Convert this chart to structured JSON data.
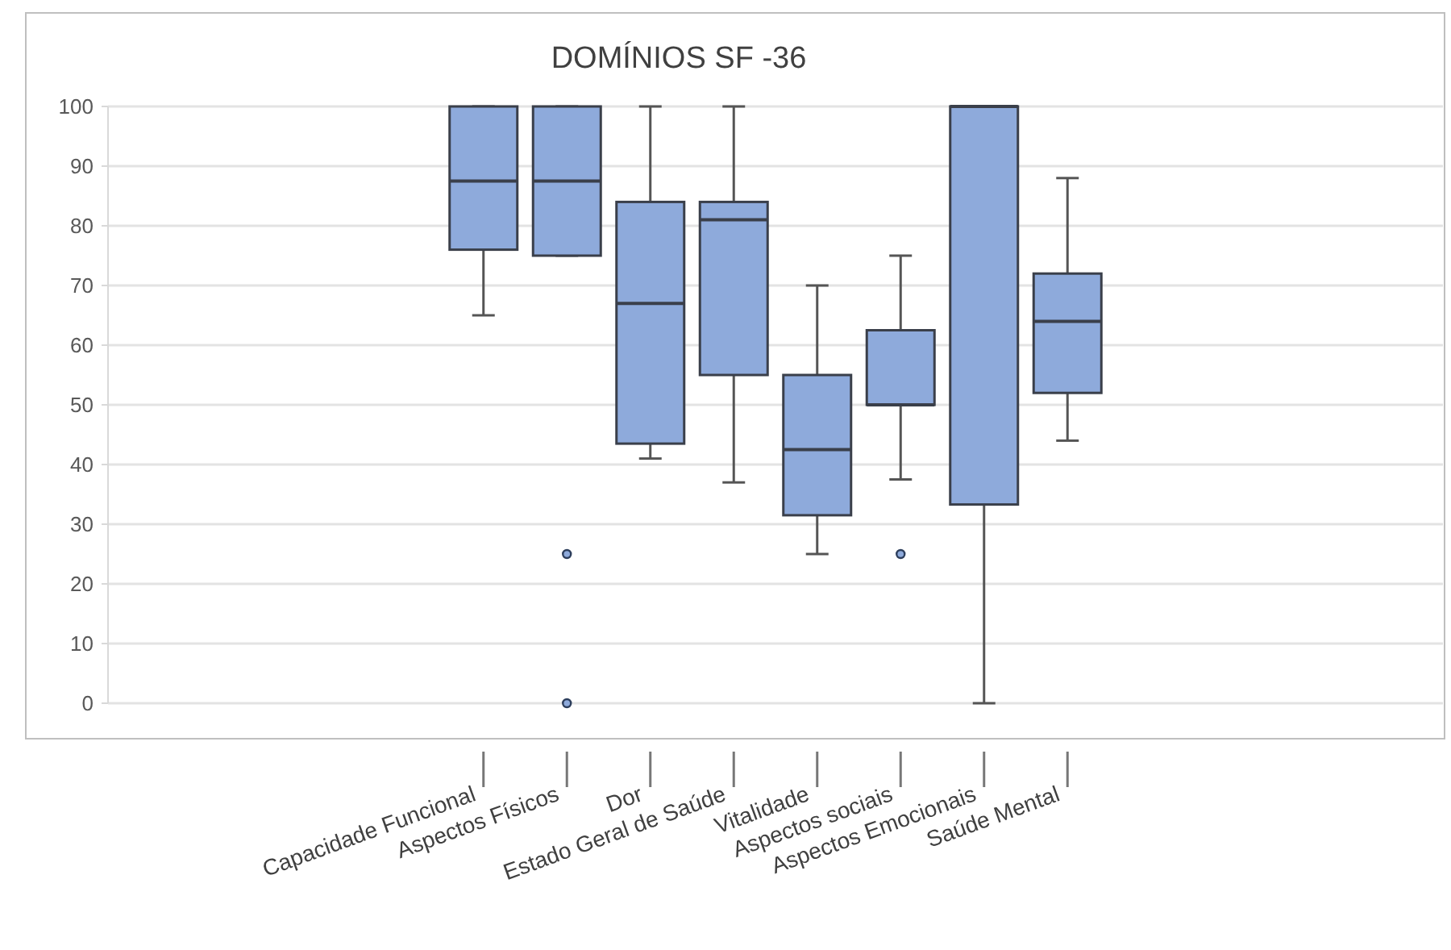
{
  "chart_data": {
    "type": "box",
    "title": "DOMÍNIOS SF -36",
    "categories": [
      null,
      null,
      null,
      null,
      "Capacidade Funcional",
      "Aspectos Físicos",
      "Dor",
      "Estado Geral de Saúde",
      "Vitalidade",
      "Aspectos sociais",
      "Aspectos Emocionais",
      "Saúde Mental",
      null,
      null,
      null,
      null
    ],
    "boxes": [
      null,
      null,
      null,
      null,
      {
        "low": 65,
        "q1": 76,
        "median": 87.5,
        "q3": 100,
        "high": 100
      },
      {
        "low": 75,
        "q1": 75,
        "median": 87.5,
        "q3": 100,
        "high": 100,
        "outliers": [
          25,
          0
        ]
      },
      {
        "low": 41,
        "q1": 43.5,
        "median": 67,
        "q3": 84,
        "high": 100
      },
      {
        "low": 37,
        "q1": 55,
        "median": 81,
        "q3": 84,
        "high": 100
      },
      {
        "low": 25,
        "q1": 31.5,
        "median": 42.5,
        "q3": 55,
        "high": 70
      },
      {
        "low": 37.5,
        "q1": 50,
        "median": 50,
        "q3": 62.5,
        "high": 75,
        "outliers": [
          25
        ]
      },
      {
        "low": 0,
        "q1": 33.3,
        "median": 100,
        "q3": 100,
        "high": 100
      },
      {
        "low": 44,
        "q1": 52,
        "median": 64,
        "q3": 72,
        "high": 88
      },
      null,
      null,
      null,
      null
    ],
    "color": "#8eaadb",
    "ylim": [
      0,
      100
    ],
    "yticks": [
      0,
      10,
      20,
      30,
      40,
      50,
      60,
      70,
      80,
      90,
      100
    ],
    "grid": "y"
  }
}
